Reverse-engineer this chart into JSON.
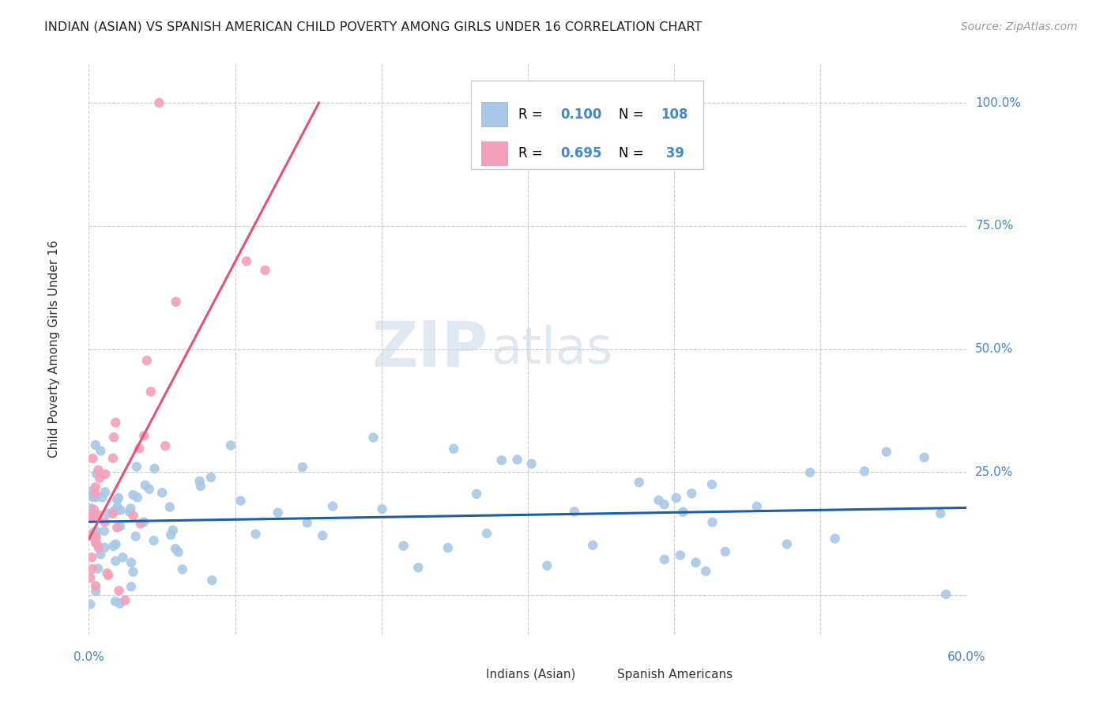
{
  "title": "INDIAN (ASIAN) VS SPANISH AMERICAN CHILD POVERTY AMONG GIRLS UNDER 16 CORRELATION CHART",
  "source": "Source: ZipAtlas.com",
  "ylabel": "Child Poverty Among Girls Under 16",
  "xlim": [
    0.0,
    0.6
  ],
  "ylim": [
    -0.08,
    1.08
  ],
  "watermark_zip": "ZIP",
  "watermark_atlas": "atlas",
  "indian_R": 0.1,
  "indian_N": 108,
  "spanish_R": 0.695,
  "spanish_N": 39,
  "indian_color": "#a8c8e8",
  "spanish_color": "#f4a0b8",
  "indian_line_color": "#1a5fa8",
  "spanish_line_color": "#e8507a",
  "background_color": "#ffffff",
  "grid_color": "#cccccc",
  "title_color": "#222222",
  "axis_tick_color": "#4488cc",
  "source_color": "#999999",
  "ylabel_color": "#333333",
  "legend_text_color": "#000000",
  "legend_val_color": "#4488cc",
  "bottom_legend_color": "#333333"
}
